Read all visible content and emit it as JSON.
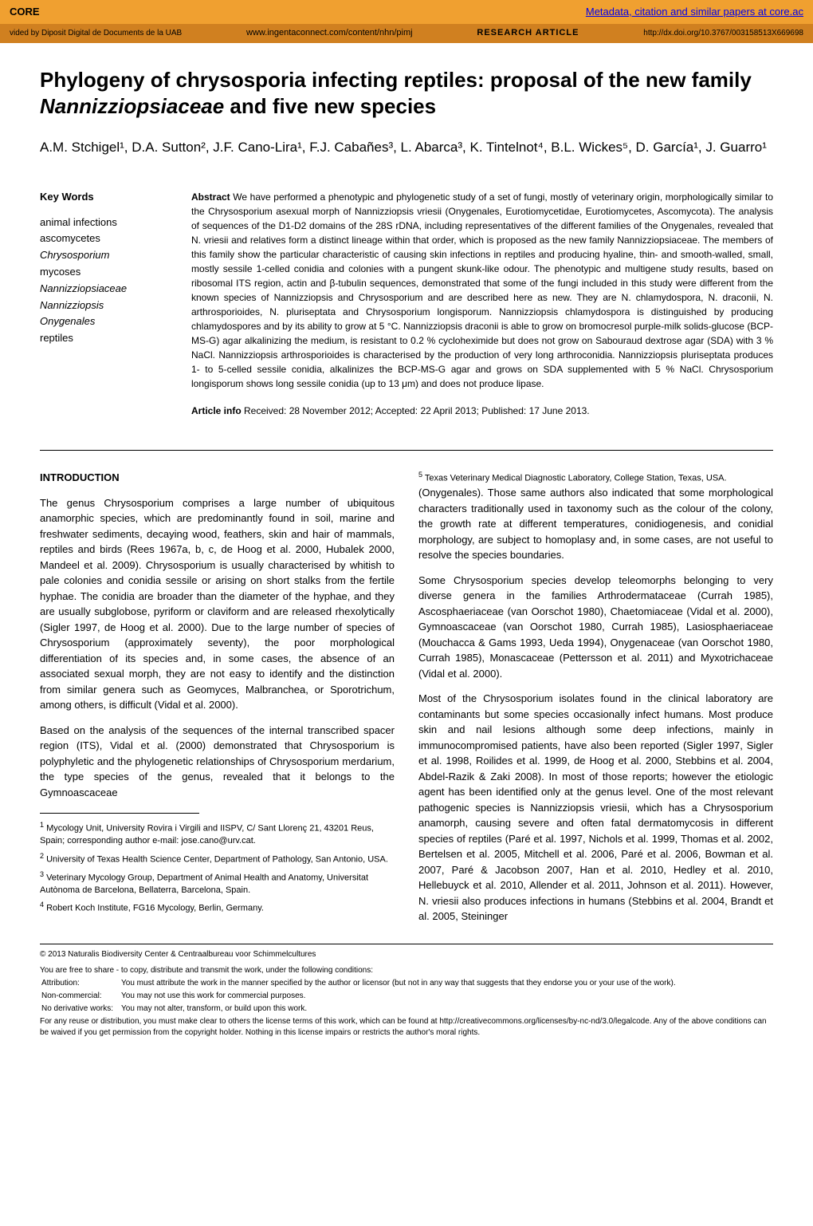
{
  "topbar": {
    "left": "CORE",
    "right_link": "Metadata, citation and similar papers at core.ac"
  },
  "subbar": {
    "left": "vided by Diposit Digital de Documents de la UAB",
    "url1": "www.ingentaconnect.com/content/nhn/pimj",
    "center": "RESEARCH  ARTICLE",
    "doi": "http://dx.doi.org/10.3767/003158513X669698"
  },
  "title_part1": "Phylogeny of chrysosporia infecting reptiles: proposal of the new family ",
  "title_italic": "Nannizziopsiaceae",
  "title_part2": " and five new species",
  "authors": "A.M. Stchigel¹, D.A. Sutton², J.F. Cano-Lira¹, F.J. Cabañes³, L. Abarca³, K. Tintelnot⁴, B.L. Wickes⁵, D. García¹, J. Guarro¹",
  "keywords": {
    "title": "Key Words",
    "items": [
      "animal infections",
      "ascomycetes",
      "Chrysosporium",
      "mycoses",
      "Nannizziopsiaceae",
      "Nannizziopsis",
      "Onygenales",
      "reptiles"
    ]
  },
  "abstract": {
    "label": "Abstract",
    "text": "   We have performed a phenotypic and phylogenetic study of a set of fungi, mostly of veterinary origin, morphologically similar to the Chrysosporium asexual morph of Nannizziopsis vriesii (Onygenales, Eurotiomycetidae, Eurotiomycetes, Ascomycota). The analysis of sequences of the D1-D2 domains of the 28S rDNA, including representatives of the different families of the Onygenales, revealed that N. vriesii and relatives form a distinct lineage within that order, which is proposed as the new family Nannizziopsiaceae. The members of this family show the particular characteristic of causing skin infections in reptiles and producing hyaline, thin- and smooth-walled, small, mostly sessile 1-celled conidia and colonies with a pungent skunk-like odour. The phenotypic and multigene study results, based on ribosomal ITS region, actin and β-tubulin sequences, demonstrated that some of the fungi included in this study were different from the known species of Nannizziopsis and Chrysosporium and are described here as new. They are N. chlamydospora, N. draconii, N. arthrosporioides, N. pluriseptata and Chrysosporium longisporum. Nannizziopsis chlamydospora is distinguished by producing chlamydospores and by its ability to grow at 5 °C. Nannizziopsis draconii is able to grow on bromocresol purple-milk solids-glucose (BCP-MS-G) agar alkalinizing the medium, is resistant to 0.2 % cycloheximide but does not grow on Sabouraud dextrose agar (SDA) with 3 % NaCl. Nannizziopsis arthrosporioides is characterised by the production of very long arthroconidia. Nannizziopsis pluriseptata produces 1- to 5-celled sessile conidia, alkalinizes the BCP-MS-G agar and grows on SDA supplemented with 5 % NaCl. Chrysosporium longisporum shows long sessile conidia (up to 13 μm) and does not produce lipase."
  },
  "article_info": {
    "label": "Article info",
    "text": "   Received: 28 November 2012; Accepted: 22 April 2013; Published: 17 June 2013."
  },
  "intro": {
    "title": "INTRODUCTION",
    "p1": "The genus Chrysosporium comprises a large number of ubiquitous anamorphic species, which are predominantly found in soil, marine and freshwater sediments, decaying wood, feathers, skin and hair of mammals, reptiles and birds (Rees 1967a, b, c, de Hoog et al. 2000, Hubalek 2000, Mandeel et al. 2009). Chrysosporium is usually characterised by whitish to pale colonies and conidia sessile or arising on short stalks from the fertile hyphae. The conidia are broader than the diameter of the hyphae, and they are usually subglobose, pyriform or claviform and are released rhexolytically (Sigler 1997, de Hoog et al. 2000). Due to the large number of species of Chrysosporium (approximately seventy), the poor morphological differentiation of its species and, in some cases, the absence of an associated sexual morph, they are not easy to identify and the distinction from similar genera such as Geomyces, Malbranchea, or Sporotrichum, among others, is difficult (Vidal et al. 2000).",
    "p2": "Based on the analysis of the sequences of the internal transcribed spacer region (ITS), Vidal et al. (2000) demonstrated that Chrysosporium is polyphyletic and the phylogenetic relationships of Chrysosporium merdarium, the type species of the genus, revealed that it belongs to the Gymnoascaceae",
    "p3": "(Onygenales). Those same authors also indicated that some morphological characters traditionally used in taxonomy such as the colour of the colony, the growth rate at different temperatures, conidiogenesis, and conidial morphology, are subject to homoplasy and, in some cases, are not useful to resolve the species boundaries.",
    "p4": "Some Chrysosporium species develop teleomorphs belonging to very diverse genera in the families Arthrodermataceae (Currah 1985), Ascosphaeriaceae (van Oorschot 1980), Chaetomiaceae (Vidal et al. 2000), Gymnoascaceae (van Oorschot 1980, Currah 1985), Lasiosphaeriaceae (Mouchacca & Gams 1993, Ueda 1994), Onygenaceae (van Oorschot 1980, Currah 1985), Monascaceae (Pettersson et al. 2011) and Myxotrichaceae (Vidal et al. 2000).",
    "p5": "Most of the Chrysosporium isolates found in the clinical laboratory are contaminants but some species occasionally infect humans. Most produce skin and nail lesions although some deep infections, mainly in immunocompromised patients, have also been reported (Sigler 1997, Sigler et al. 1998, Roilides et al. 1999, de Hoog et al. 2000, Stebbins et al. 2004, Abdel-Razik & Zaki 2008). In most of those reports; however the etiologic agent has been identified only at the genus level. One of the most relevant pathogenic species is Nannizziopsis vriesii, which has a Chrysosporium anamorph, causing severe and often fatal dermatomycosis in different species of reptiles (Paré et al. 1997, Nichols et al. 1999, Thomas et al. 2002, Bertelsen et al. 2005, Mitchell et al. 2006, Paré et al. 2006, Bowman et al. 2007, Paré & Jacobson 2007, Han et al. 2010, Hedley et al. 2010, Hellebuyck et al. 2010, Allender et al. 2011, Johnson et al. 2011). However, N. vriesii also produces infections in humans (Stebbins et al. 2004, Brandt et al. 2005, Steininger"
  },
  "footnotes": {
    "fn1": "Mycology Unit, University Rovira i Virgili and IISPV, C/ Sant Llorenç 21, 43201 Reus, Spain; corresponding author e-mail: jose.cano@urv.cat.",
    "fn2": "University of Texas Health Science Center, Department of Pathology, San Antonio, USA.",
    "fn3": "Veterinary Mycology Group, Department of Animal Health and Anatomy, Universitat Autònoma de Barcelona, Bellaterra, Barcelona, Spain.",
    "fn4": "Robert Koch Institute, FG16 Mycology, Berlin, Germany.",
    "fn5": "Texas Veterinary Medical Diagnostic Laboratory, College Station, Texas, USA."
  },
  "copyright": "© 2013   Naturalis Biodiversity Center & Centraalbureau voor Schimmelcultures",
  "license": {
    "intro": "You are free to share - to copy, distribute and transmit the work, under the following conditions:",
    "attribution_label": "Attribution:",
    "attribution_text": "You must attribute the work in the manner specified by the author or licensor (but not in any way that suggests that they endorse you or your use of the work).",
    "noncommercial_label": "Non-commercial:",
    "noncommercial_text": "You may not use this work for commercial purposes.",
    "noderivative_label": "No derivative works:",
    "noderivative_text": "You may not alter, transform, or build upon this work.",
    "reuse": "For any reuse or distribution, you must make clear to others the license terms of this work, which can be found at http://creativecommons.org/licenses/by-nc-nd/3.0/legalcode. Any of the above conditions can be waived if you get permission from the copyright holder. Nothing in this license impairs or restricts the author's moral rights."
  }
}
